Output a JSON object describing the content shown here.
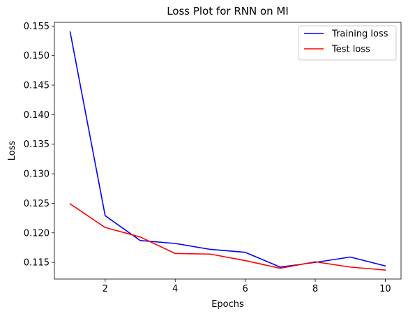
{
  "chart_data": {
    "type": "line",
    "title": "Loss Plot for RNN on MI",
    "xlabel": "Epochs",
    "ylabel": "Loss",
    "x": [
      1,
      2,
      3,
      4,
      5,
      6,
      7,
      8,
      9,
      10
    ],
    "series": [
      {
        "name": "Training loss",
        "color": "#0000ff",
        "values": [
          0.154,
          0.1229,
          0.1187,
          0.1182,
          0.1172,
          0.1167,
          0.1142,
          0.115,
          0.1159,
          0.1144
        ]
      },
      {
        "name": "Test loss",
        "color": "#ff0000",
        "values": [
          0.1249,
          0.1209,
          0.1193,
          0.1165,
          0.1164,
          0.1153,
          0.114,
          0.1151,
          0.1142,
          0.1137
        ]
      }
    ],
    "xlim": [
      0.55,
      10.45
    ],
    "ylim": [
      0.11218,
      0.15563
    ],
    "xticks": [
      2,
      4,
      6,
      8,
      10
    ],
    "xtick_labels": [
      "2",
      "4",
      "6",
      "8",
      "10"
    ],
    "yticks": [
      0.115,
      0.12,
      0.125,
      0.13,
      0.135,
      0.14,
      0.145,
      0.15,
      0.155
    ],
    "ytick_labels": [
      "0.115",
      "0.120",
      "0.125",
      "0.130",
      "0.135",
      "0.140",
      "0.145",
      "0.150",
      "0.155"
    ],
    "grid": false,
    "legend_position": "top-right"
  }
}
